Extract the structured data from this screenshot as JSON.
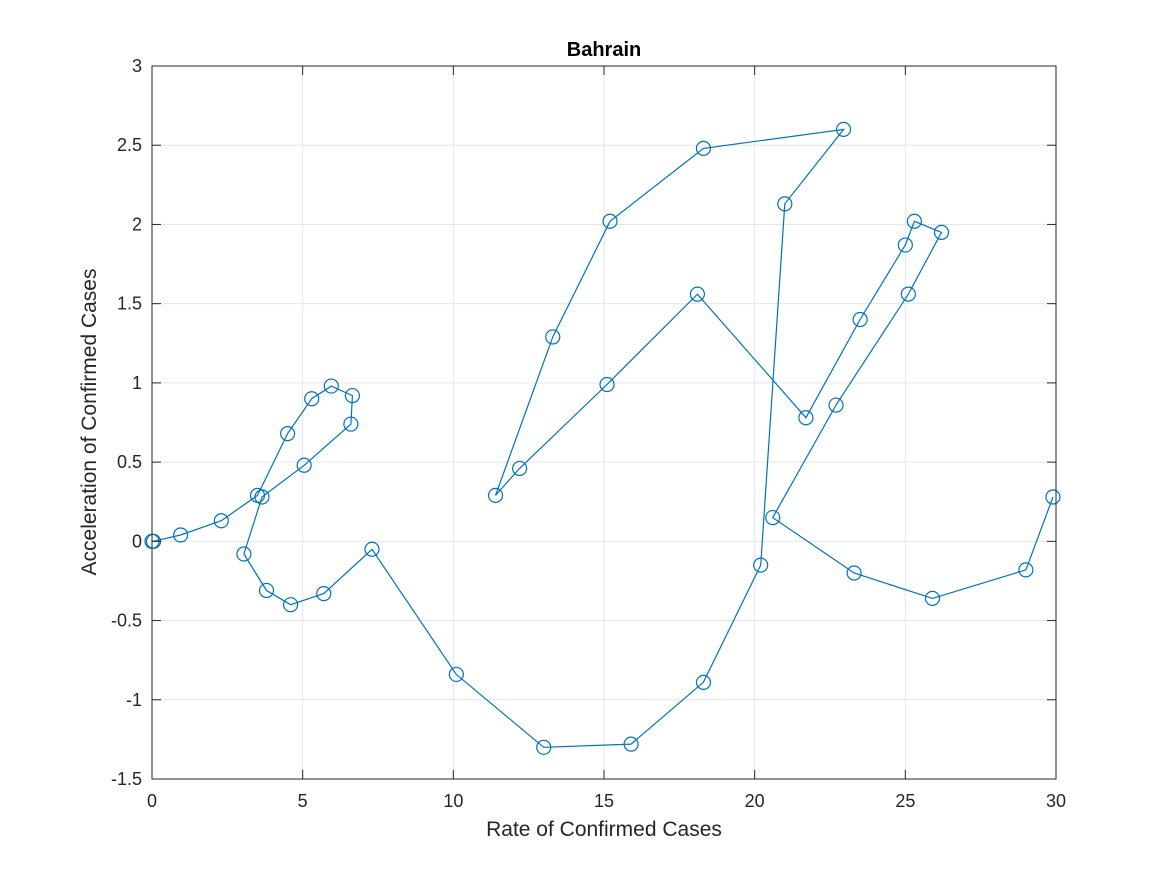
{
  "chart_data": {
    "type": "line",
    "title": "Bahrain",
    "xlabel": "Rate of Confirmed Cases",
    "ylabel": "Acceleration of Confirmed Cases",
    "xlim": [
      0,
      30
    ],
    "ylim": [
      -1.5,
      3
    ],
    "xticks": [
      0,
      5,
      10,
      15,
      20,
      25,
      30
    ],
    "yticks": [
      -1.5,
      -1,
      -0.5,
      0,
      0.5,
      1,
      1.5,
      2,
      2.5,
      3
    ],
    "xtick_labels": [
      "0",
      "5",
      "10",
      "15",
      "20",
      "25",
      "30"
    ],
    "ytick_labels": [
      "-1.5",
      "-1",
      "-0.5",
      "0",
      "0.5",
      "1",
      "1.5",
      "2",
      "2.5",
      "3"
    ],
    "grid": true,
    "marker": "circle",
    "color": "#0072BD",
    "series": [
      {
        "x": [
          0,
          0.05,
          0.95,
          2.3,
          3.5,
          4.5,
          5.3,
          5.95,
          6.65,
          6.6,
          5.05,
          3.65,
          3.05,
          3.8,
          4.6,
          5.7,
          7.3,
          10.1,
          13.0,
          15.9,
          18.3,
          20.2,
          21.0,
          22.95,
          18.3,
          15.2,
          13.3,
          11.4,
          12.2,
          15.1,
          18.1,
          21.7,
          23.5,
          25.0,
          25.3,
          26.2,
          25.1,
          22.7,
          20.6,
          23.3,
          25.9,
          29.0,
          29.9
        ],
        "y": [
          0,
          0,
          0.04,
          0.13,
          0.29,
          0.68,
          0.9,
          0.98,
          0.92,
          0.74,
          0.48,
          0.28,
          -0.08,
          -0.31,
          -0.4,
          -0.33,
          -0.05,
          -0.84,
          -1.3,
          -1.28,
          -0.89,
          -0.15,
          2.13,
          2.6,
          2.48,
          2.02,
          1.29,
          0.29,
          0.46,
          0.99,
          1.56,
          0.78,
          1.4,
          1.87,
          2.02,
          1.95,
          1.56,
          0.86,
          0.15,
          -0.2,
          -0.36,
          -0.18,
          0.28
        ]
      }
    ]
  }
}
